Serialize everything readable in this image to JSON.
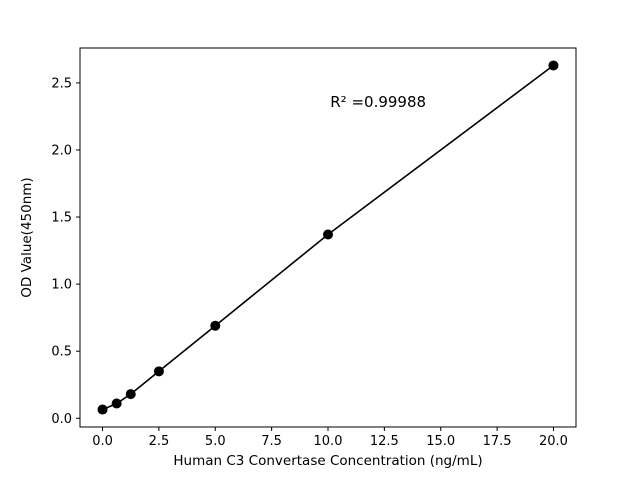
{
  "chart_data": {
    "type": "scatter",
    "title": "",
    "xlabel": "Human C3 Convertase Concentration (ng/mL)",
    "ylabel": "OD Value(450nm)",
    "x": [
      0,
      0.625,
      1.25,
      2.5,
      5,
      10,
      20
    ],
    "y": [
      0.065,
      0.11,
      0.18,
      0.35,
      0.69,
      1.37,
      2.63
    ],
    "fit_line": true,
    "xlim": [
      -1,
      21
    ],
    "ylim": [
      -0.065,
      2.76
    ],
    "xticks": [
      0.0,
      2.5,
      5.0,
      7.5,
      10.0,
      12.5,
      15.0,
      17.5,
      20.0
    ],
    "xtick_labels": [
      "0.0",
      "2.5",
      "5.0",
      "7.5",
      "10.0",
      "12.5",
      "15.0",
      "17.5",
      "20.0"
    ],
    "yticks": [
      0.0,
      0.5,
      1.0,
      1.5,
      2.0,
      2.5
    ],
    "ytick_labels": [
      "0.0",
      "0.5",
      "1.0",
      "1.5",
      "2.0",
      "2.5"
    ],
    "annotation": {
      "text": "R² =0.99988",
      "x": 10.1,
      "y": 2.32
    },
    "grid": false,
    "legend": null,
    "marker_color": "#000000",
    "line_color": "#000000",
    "background_color": "#ffffff"
  }
}
